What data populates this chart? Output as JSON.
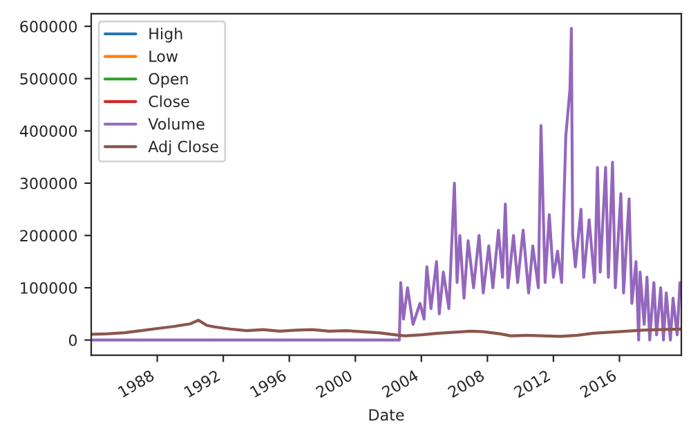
{
  "chart_data": {
    "type": "line",
    "xlabel": "Date",
    "x": [
      "1984-01",
      "1985-01",
      "1986-01",
      "1987-01",
      "1988-01",
      "1989-01",
      "1990-01",
      "1990-07",
      "1991-01",
      "1991-07",
      "1992-06",
      "1993-06",
      "1994-06",
      "1995-06",
      "1996-06",
      "1997-06",
      "1998-06",
      "1999-06",
      "2000-06",
      "2001-06",
      "2002-06",
      "2003-01",
      "2004-01",
      "2005-01",
      "2006-01",
      "2007-01",
      "2007-10",
      "2008-10",
      "2009-06",
      "2010-06",
      "2011-06",
      "2012-06",
      "2013-06",
      "2014-06",
      "2015-06",
      "2016-06",
      "2017-06",
      "2018-06",
      "2019-09"
    ],
    "series": [
      {
        "name": "High",
        "color": "#1f77b4",
        "values": [
          null,
          null,
          null,
          null,
          null,
          null,
          null,
          null,
          null,
          null,
          null,
          null,
          null,
          null,
          null,
          null,
          null,
          null,
          null,
          null,
          null,
          null,
          null,
          null,
          null,
          null,
          null,
          null,
          null,
          null,
          null,
          null,
          null,
          null,
          null,
          null,
          null,
          null,
          null
        ]
      },
      {
        "name": "Low",
        "color": "#ff7f0e",
        "values": [
          null,
          null,
          null,
          null,
          null,
          null,
          null,
          null,
          null,
          null,
          null,
          null,
          null,
          null,
          null,
          null,
          null,
          null,
          null,
          null,
          null,
          null,
          null,
          null,
          null,
          null,
          null,
          null,
          null,
          null,
          null,
          null,
          null,
          null,
          null,
          null,
          null,
          null,
          null
        ]
      },
      {
        "name": "Open",
        "color": "#2ca02c",
        "values": [
          null,
          null,
          null,
          null,
          null,
          null,
          null,
          null,
          null,
          null,
          null,
          null,
          null,
          null,
          null,
          null,
          null,
          null,
          null,
          null,
          null,
          null,
          null,
          null,
          null,
          null,
          null,
          null,
          null,
          null,
          null,
          null,
          null,
          null,
          null,
          null,
          null,
          null,
          null
        ]
      },
      {
        "name": "Close",
        "color": "#d62728",
        "values": [
          null,
          null,
          null,
          null,
          null,
          null,
          null,
          null,
          null,
          null,
          null,
          null,
          null,
          null,
          null,
          null,
          null,
          null,
          null,
          null,
          null,
          null,
          null,
          null,
          null,
          null,
          null,
          null,
          null,
          null,
          null,
          null,
          null,
          null,
          null,
          null,
          null,
          null,
          null
        ]
      },
      {
        "name": "Volume",
        "color": "#9467bd",
        "x": [
          "1984-01",
          "2002-09",
          "2002-10",
          "2002-12",
          "2003-03",
          "2003-07",
          "2003-12",
          "2004-03",
          "2004-05",
          "2004-08",
          "2004-12",
          "2005-02",
          "2005-05",
          "2005-09",
          "2006-01",
          "2006-03",
          "2006-05",
          "2006-08",
          "2006-11",
          "2007-03",
          "2007-07",
          "2007-10",
          "2008-02",
          "2008-05",
          "2008-09",
          "2008-12",
          "2009-02",
          "2009-04",
          "2009-08",
          "2009-11",
          "2010-03",
          "2010-07",
          "2010-10",
          "2011-02",
          "2011-04",
          "2011-07",
          "2011-10",
          "2012-01",
          "2012-04",
          "2012-07",
          "2012-10",
          "2013-01",
          "2013-02",
          "2013-03",
          "2013-05",
          "2013-09",
          "2013-11",
          "2014-03",
          "2014-07",
          "2014-09",
          "2014-11",
          "2015-03",
          "2015-05",
          "2015-08",
          "2015-10",
          "2016-02",
          "2016-04",
          "2016-08",
          "2016-10",
          "2017-01",
          "2017-03",
          "2017-04",
          "2017-07",
          "2017-09",
          "2017-11",
          "2018-02",
          "2018-04",
          "2018-07",
          "2018-09",
          "2018-11",
          "2019-02",
          "2019-04",
          "2019-07",
          "2019-09"
        ],
        "values": [
          0,
          0,
          110000,
          40000,
          100000,
          30000,
          70000,
          40000,
          140000,
          60000,
          150000,
          50000,
          130000,
          60000,
          300000,
          110000,
          200000,
          80000,
          190000,
          100000,
          200000,
          90000,
          180000,
          100000,
          210000,
          120000,
          260000,
          100000,
          200000,
          110000,
          210000,
          90000,
          180000,
          100000,
          410000,
          110000,
          240000,
          120000,
          170000,
          110000,
          390000,
          480000,
          596000,
          200000,
          140000,
          250000,
          120000,
          230000,
          110000,
          330000,
          130000,
          330000,
          120000,
          340000,
          100000,
          280000,
          90000,
          270000,
          70000,
          150000,
          0,
          130000,
          30000,
          120000,
          0,
          110000,
          10000,
          100000,
          0,
          90000,
          0,
          80000,
          10000,
          110000
        ]
      },
      {
        "name": "Adj Close",
        "color": "#8c564b",
        "values": [
          11000,
          12000,
          14000,
          18000,
          22000,
          26000,
          31000,
          38000,
          28000,
          25000,
          21000,
          18000,
          20000,
          17000,
          19000,
          20000,
          17000,
          18000,
          16000,
          14000,
          10000,
          8000,
          10000,
          13000,
          15000,
          17000,
          16000,
          12000,
          8000,
          9000,
          8000,
          7000,
          9000,
          13000,
          15000,
          17000,
          19000,
          20000,
          21000
        ]
      }
    ],
    "xlim": [
      "1984-01-01",
      "2019-10-01"
    ],
    "xticks": [
      {
        "value": "1988-01-01",
        "label": "1988"
      },
      {
        "value": "1992-01-01",
        "label": "1992"
      },
      {
        "value": "1996-01-01",
        "label": "1996"
      },
      {
        "value": "2000-01-01",
        "label": "2000"
      },
      {
        "value": "2004-01-01",
        "label": "2004"
      },
      {
        "value": "2008-01-01",
        "label": "2008"
      },
      {
        "value": "2012-01-01",
        "label": "2012"
      },
      {
        "value": "2016-01-01",
        "label": "2016"
      }
    ],
    "ylim": [
      -29000,
      624000
    ],
    "yticks": [
      0,
      100000,
      200000,
      300000,
      400000,
      500000,
      600000
    ],
    "grid": false,
    "legend": "top left",
    "line_style": "solid",
    "marker": "none"
  }
}
